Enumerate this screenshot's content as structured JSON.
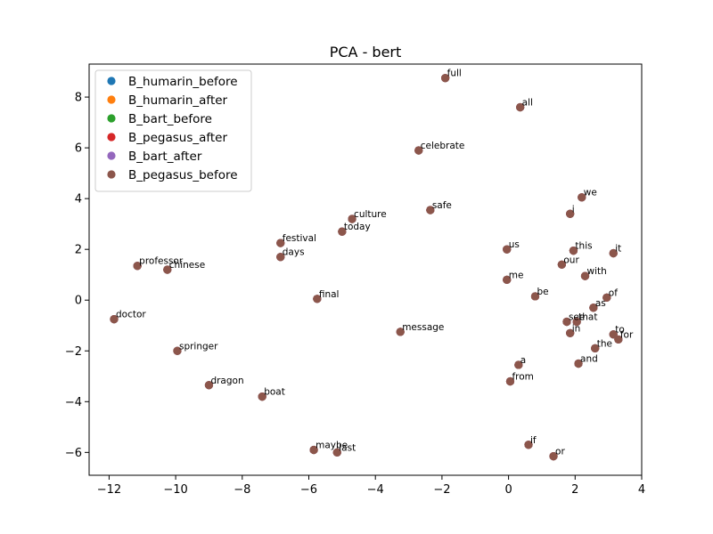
{
  "chart_data": {
    "type": "scatter",
    "title": "PCA - bert",
    "xlabel": "",
    "ylabel": "",
    "xlim": [
      -12.6,
      4.0
    ],
    "ylim": [
      -6.9,
      9.3
    ],
    "xticks": [
      -12,
      -10,
      -8,
      -6,
      -4,
      -2,
      0,
      2,
      4
    ],
    "yticks": [
      -6,
      -4,
      -2,
      0,
      2,
      4,
      6,
      8
    ],
    "grid": false,
    "legend_position": "top-left",
    "series": [
      {
        "name": "B_humarin_before",
        "color": "#1f77b4"
      },
      {
        "name": "B_humarin_after",
        "color": "#ff7f0e"
      },
      {
        "name": "B_bart_before",
        "color": "#2ca02c"
      },
      {
        "name": "B_pegasus_after",
        "color": "#d62728"
      },
      {
        "name": "B_bart_after",
        "color": "#9467bd"
      },
      {
        "name": "B_pegasus_before",
        "color": "#8c564b"
      }
    ],
    "points": [
      {
        "label": "full",
        "x": -1.9,
        "y": 8.75
      },
      {
        "label": "all",
        "x": 0.35,
        "y": 7.6
      },
      {
        "label": "celebrate",
        "x": -2.7,
        "y": 5.9
      },
      {
        "label": "we",
        "x": 2.2,
        "y": 4.05
      },
      {
        "label": "safe",
        "x": -2.35,
        "y": 3.55
      },
      {
        "label": "i",
        "x": 1.85,
        "y": 3.4
      },
      {
        "label": "culture",
        "x": -4.7,
        "y": 3.2
      },
      {
        "label": "today",
        "x": -5.0,
        "y": 2.7
      },
      {
        "label": "festival",
        "x": -6.85,
        "y": 2.25
      },
      {
        "label": "us",
        "x": -0.05,
        "y": 2.0
      },
      {
        "label": "this",
        "x": 1.95,
        "y": 1.95
      },
      {
        "label": "it",
        "x": 3.15,
        "y": 1.85
      },
      {
        "label": "days",
        "x": -6.85,
        "y": 1.7
      },
      {
        "label": "our",
        "x": 1.6,
        "y": 1.4
      },
      {
        "label": "professor",
        "x": -11.15,
        "y": 1.35
      },
      {
        "label": "chinese",
        "x": -10.25,
        "y": 1.2
      },
      {
        "label": "with",
        "x": 2.3,
        "y": 0.95
      },
      {
        "label": "me",
        "x": -0.05,
        "y": 0.8
      },
      {
        "label": "be",
        "x": 0.8,
        "y": 0.15
      },
      {
        "label": "of",
        "x": 2.95,
        "y": 0.1
      },
      {
        "label": "final",
        "x": -5.75,
        "y": 0.05
      },
      {
        "label": "as",
        "x": 2.55,
        "y": -0.3
      },
      {
        "label": "doctor",
        "x": -11.85,
        "y": -0.75
      },
      {
        "label": "see",
        "x": 1.75,
        "y": -0.85
      },
      {
        "label": "that",
        "x": 2.05,
        "y": -0.85
      },
      {
        "label": "message",
        "x": -3.25,
        "y": -1.25
      },
      {
        "label": "in",
        "x": 1.85,
        "y": -1.3
      },
      {
        "label": "to",
        "x": 3.15,
        "y": -1.35
      },
      {
        "label": "for",
        "x": 3.3,
        "y": -1.55
      },
      {
        "label": "the",
        "x": 2.6,
        "y": -1.9
      },
      {
        "label": "springer",
        "x": -9.95,
        "y": -2.0
      },
      {
        "label": "and",
        "x": 2.1,
        "y": -2.5
      },
      {
        "label": "a",
        "x": 0.3,
        "y": -2.55
      },
      {
        "label": "from",
        "x": 0.05,
        "y": -3.2
      },
      {
        "label": "dragon",
        "x": -9.0,
        "y": -3.35
      },
      {
        "label": "boat",
        "x": -7.4,
        "y": -3.8
      },
      {
        "label": "if",
        "x": 0.6,
        "y": -5.7
      },
      {
        "label": "maybe",
        "x": -5.85,
        "y": -5.9
      },
      {
        "label": "last",
        "x": -5.15,
        "y": -6.0
      },
      {
        "label": "or",
        "x": 1.35,
        "y": -6.15
      }
    ]
  }
}
